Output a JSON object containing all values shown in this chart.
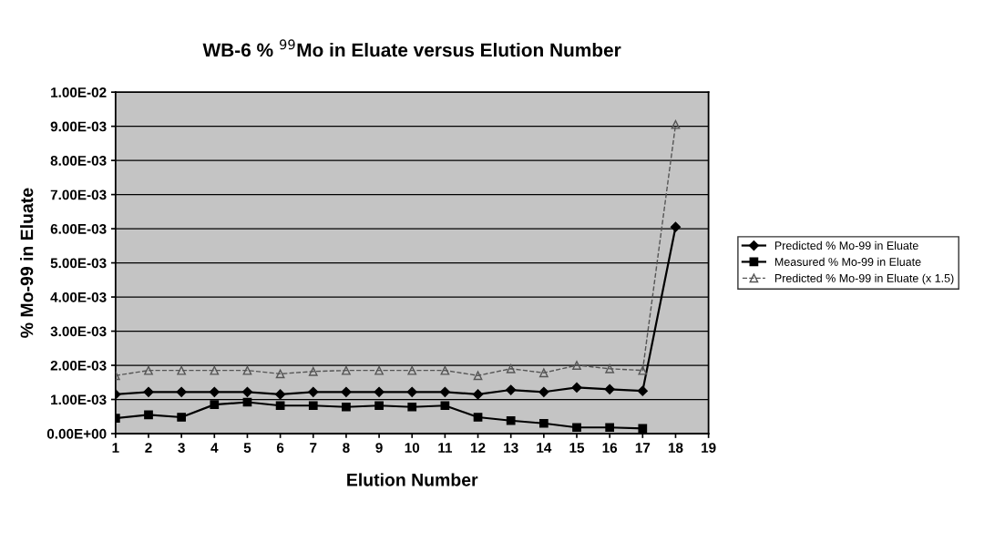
{
  "chart_data": {
    "type": "line",
    "title": "WB-6 % $^{99}$Mo in Eluate versus Elution Number",
    "xlabel": "Elution Number",
    "ylabel": "% Mo-99 in Eluate",
    "x": [
      1,
      2,
      3,
      4,
      5,
      6,
      7,
      8,
      9,
      10,
      11,
      12,
      13,
      14,
      15,
      16,
      17,
      18
    ],
    "xlim": [
      1,
      19
    ],
    "xticks": [
      1,
      2,
      3,
      4,
      5,
      6,
      7,
      8,
      9,
      10,
      11,
      12,
      13,
      14,
      15,
      16,
      17,
      18,
      19
    ],
    "ylim": [
      0,
      0.01
    ],
    "yticks": [
      {
        "value": 0,
        "label": "0.00E+00"
      },
      {
        "value": 0.001,
        "label": "1.00E-03"
      },
      {
        "value": 0.002,
        "label": "2.00E-03"
      },
      {
        "value": 0.003,
        "label": "3.00E-03"
      },
      {
        "value": 0.004,
        "label": "4.00E-03"
      },
      {
        "value": 0.005,
        "label": "5.00E-03"
      },
      {
        "value": 0.006,
        "label": "6.00E-03"
      },
      {
        "value": 0.007,
        "label": "7.00E-03"
      },
      {
        "value": 0.008,
        "label": "8.00E-03"
      },
      {
        "value": 0.009,
        "label": "9.00E-03"
      },
      {
        "value": 0.01,
        "label": "1.00E-02"
      }
    ],
    "grid": "y",
    "legend": "right",
    "series": [
      {
        "name": "Predicted % Mo-99 in Eluate",
        "color": "#000000",
        "marker": "diamond",
        "line_style": "solid",
        "values": [
          0.00115,
          0.00122,
          0.00122,
          0.00122,
          0.00122,
          0.00115,
          0.00122,
          0.00122,
          0.00122,
          0.00122,
          0.00122,
          0.00115,
          0.00128,
          0.00122,
          0.00135,
          0.0013,
          0.00125,
          0.00605
        ]
      },
      {
        "name": "Measured % Mo-99 in Eluate",
        "color": "#000000",
        "marker": "square",
        "line_style": "solid",
        "values": [
          0.00045,
          0.00055,
          0.00048,
          0.00085,
          0.00092,
          0.00082,
          0.00082,
          0.00078,
          0.00082,
          0.00078,
          0.00082,
          0.00048,
          0.00038,
          0.0003,
          0.00018,
          0.00018,
          0.00015,
          null
        ]
      },
      {
        "name": "Predicted % Mo-99 in Eluate (x 1.5)",
        "color": "#555555",
        "marker": "triangle",
        "line_style": "dashed",
        "values": [
          0.0017,
          0.00185,
          0.00185,
          0.00185,
          0.00185,
          0.00175,
          0.00182,
          0.00185,
          0.00185,
          0.00185,
          0.00185,
          0.0017,
          0.0019,
          0.00178,
          0.002,
          0.0019,
          0.00185,
          0.00905
        ]
      }
    ]
  }
}
